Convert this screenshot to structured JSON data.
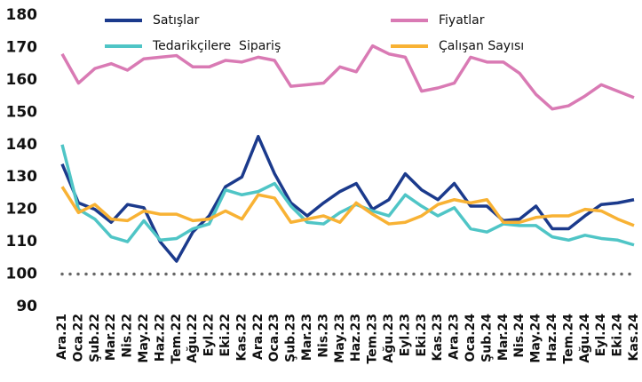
{
  "chart_data": {
    "type": "line",
    "categories": [
      "Ara.21",
      "Oca.22",
      "Şub.22",
      "Mar.22",
      "Nis.22",
      "May.22",
      "Haz.22",
      "Tem.22",
      "Ağu.22",
      "Eyl.22",
      "Eki.22",
      "Kas.22",
      "Ara.22",
      "Oca.23",
      "Şub.23",
      "Mar.23",
      "Nis.23",
      "May.23",
      "Haz.23",
      "Tem.23",
      "Ağu.23",
      "Eyl.23",
      "Eki.23",
      "Kas.23",
      "Ara.23",
      "Oca.24",
      "Şub.24",
      "Mar.24",
      "Nis.24",
      "May.24",
      "Haz.24",
      "Tem.24",
      "Ağu.24",
      "Eyl.24",
      "Eki.24",
      "Kas.24"
    ],
    "series": [
      {
        "name": "Satışlar",
        "color": "#1b3a8c",
        "values": [
          134,
          122,
          120,
          116,
          121.5,
          120.5,
          110,
          104,
          113,
          118,
          127,
          130,
          142.5,
          131,
          122,
          118,
          122,
          125.5,
          128,
          120,
          123,
          131,
          126,
          123,
          128,
          121,
          121,
          116.5,
          117,
          121,
          114,
          114,
          118,
          121.5,
          122,
          123
        ]
      },
      {
        "name": "Fiyatlar",
        "color": "#d97ab4",
        "values": [
          168,
          159,
          163.5,
          165,
          163,
          166.5,
          167,
          167.5,
          164,
          164,
          166,
          165.5,
          167,
          166,
          158,
          158.5,
          159,
          164,
          162.5,
          170.5,
          168,
          167,
          156.5,
          157.5,
          159,
          167,
          165.5,
          165.5,
          162,
          155.5,
          151,
          152,
          155,
          158.5,
          156.5,
          154.5
        ]
      },
      {
        "name": "Tedarikçilere  Sipariş",
        "color": "#4fc5c6",
        "values": [
          140,
          120,
          117,
          111.5,
          110,
          116.5,
          110.5,
          111,
          114,
          115.5,
          126,
          124.5,
          125.5,
          128,
          121,
          116,
          115.5,
          119,
          121.5,
          119.5,
          118,
          124.5,
          121,
          118,
          120.5,
          114,
          113,
          115.5,
          115,
          115,
          111.5,
          110.5,
          112,
          111,
          110.5,
          109
        ]
      },
      {
        "name": "Çalışan Sayısı",
        "color": "#f8b234",
        "values": [
          127,
          119,
          121.5,
          117,
          116.5,
          119.5,
          118.5,
          118.5,
          116.5,
          117,
          119.5,
          117,
          124.5,
          123.5,
          116,
          117,
          118,
          116,
          122,
          118.5,
          115.5,
          116,
          118,
          121.5,
          123,
          122,
          123,
          116,
          116,
          117.5,
          118,
          118,
          120,
          119.5,
          117,
          115
        ]
      }
    ],
    "ylim": [
      90,
      180
    ],
    "yticks": [
      90,
      100,
      110,
      120,
      130,
      140,
      150,
      160,
      170,
      180
    ],
    "reference_line": 100,
    "grid": false
  }
}
